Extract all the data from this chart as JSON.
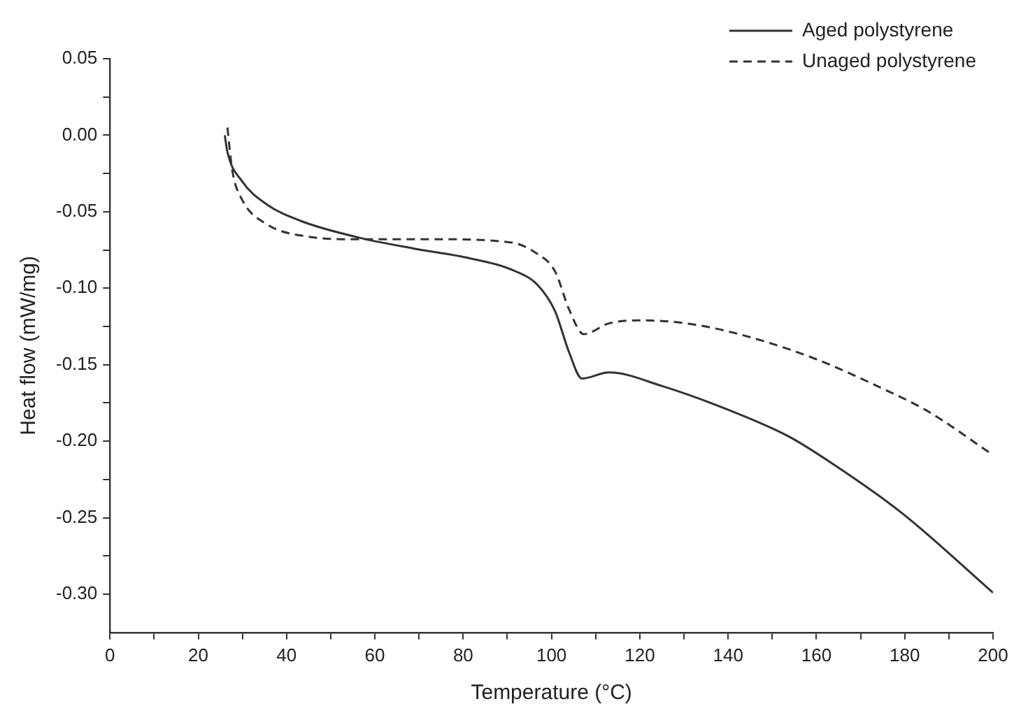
{
  "chart_data": {
    "type": "line",
    "xlabel": "Temperature (°C)",
    "ylabel": "Heat flow (mW/mg)",
    "legend": "top right",
    "grid": false,
    "marker": "none",
    "xlim": [
      0,
      200
    ],
    "ylim": [
      -0.325,
      0.05
    ],
    "xticks": [
      0,
      {
        "value": 10,
        "label": null
      },
      20,
      {
        "value": 30,
        "label": null
      },
      40,
      {
        "value": 50,
        "label": null
      },
      60,
      {
        "value": 70,
        "label": null
      },
      80,
      {
        "value": 90,
        "label": null
      },
      100,
      {
        "value": 110,
        "label": null
      },
      120,
      {
        "value": 130,
        "label": null
      },
      140,
      {
        "value": 150,
        "label": null
      },
      160,
      {
        "value": 170,
        "label": null
      },
      180,
      {
        "value": 190,
        "label": null
      },
      200
    ],
    "yticks": [
      {
        "value": -0.3,
        "label": "-0.30"
      },
      {
        "value": -0.275,
        "label": null
      },
      {
        "value": -0.25,
        "label": "-0.25"
      },
      {
        "value": -0.225,
        "label": null
      },
      {
        "value": -0.2,
        "label": "-0.20"
      },
      {
        "value": -0.175,
        "label": null
      },
      {
        "value": -0.15,
        "label": "-0.15"
      },
      {
        "value": -0.125,
        "label": null
      },
      {
        "value": -0.1,
        "label": "-0.10"
      },
      {
        "value": -0.075,
        "label": null
      },
      {
        "value": -0.05,
        "label": "-0.05"
      },
      {
        "value": -0.025,
        "label": null
      },
      {
        "value": 0,
        "label": "0.00"
      },
      {
        "value": 0.025,
        "label": null
      },
      {
        "value": 0.05,
        "label": "0.05"
      }
    ],
    "series": [
      {
        "name": "Aged polystyrene",
        "color": "#333333",
        "line_style": "solid",
        "x": [
          26,
          26.6,
          29.9,
          35.4,
          43.2,
          56.5,
          68.7,
          80.8,
          91.9,
          96.9,
          100.8,
          104,
          106.9,
          113,
          125.1,
          140.5,
          153.8,
          163.8,
          179.4,
          200
        ],
        "values": [
          0,
          -0.011,
          -0.03,
          -0.045,
          -0.056,
          -0.067,
          -0.074,
          -0.08,
          -0.089,
          -0.098,
          -0.115,
          -0.142,
          -0.159,
          -0.155,
          -0.164,
          -0.18,
          -0.197,
          -0.215,
          -0.247,
          -0.299
        ]
      },
      {
        "name": "Unaged polystyrene",
        "color": "#333333",
        "line_style": "dashed",
        "x": [
          26.6,
          27.7,
          29.9,
          35.4,
          44.2,
          56.5,
          74.1,
          90.7,
          96.5,
          100.8,
          104,
          107.3,
          113,
          120.6,
          132.9,
          146.2,
          160.5,
          173.8,
          185,
          199.5
        ],
        "values": [
          0.005,
          -0.023,
          -0.042,
          -0.058,
          -0.066,
          -0.068,
          -0.068,
          -0.07,
          -0.077,
          -0.089,
          -0.114,
          -0.13,
          -0.123,
          -0.121,
          -0.124,
          -0.133,
          -0.147,
          -0.164,
          -0.18,
          -0.208
        ]
      }
    ]
  }
}
